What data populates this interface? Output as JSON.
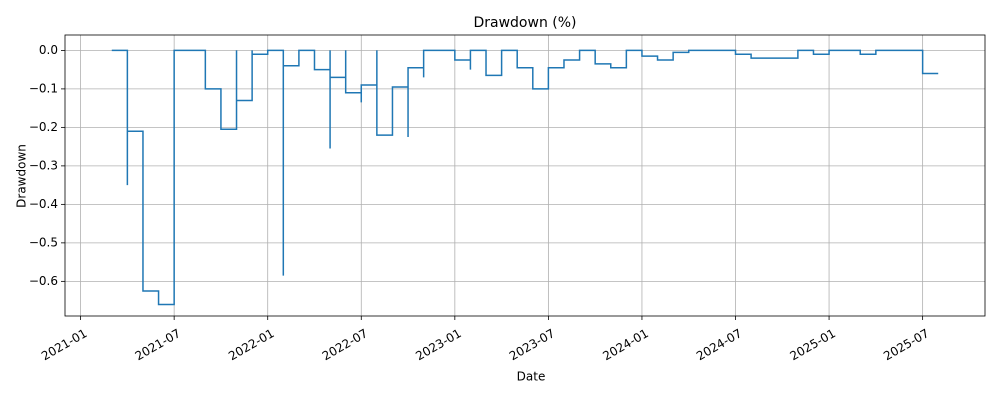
{
  "chart_data": {
    "type": "line",
    "title": "Drawdown (%)",
    "x_label": "Date",
    "y_label": "Drawdown",
    "x": [
      "2021-03",
      "2021-04",
      "2021-04",
      "2021-04",
      "2021-04",
      "2021-04",
      "2021-04",
      "2021-04",
      "2021-05",
      "2021-05",
      "2021-06",
      "2021-06",
      "2021-07",
      "2021-07",
      "2021-07",
      "2021-07",
      "2021-09",
      "2021-09",
      "2021-10",
      "2021-10",
      "2021-11",
      "2021-11",
      "2021-11",
      "2021-12",
      "2021-12",
      "2021-12",
      "2022-01",
      "2022-01",
      "2022-02",
      "2022-02",
      "2022-02",
      "2022-02",
      "2022-03",
      "2022-03",
      "2022-04",
      "2022-04",
      "2022-05",
      "2022-05",
      "2022-05",
      "2022-05",
      "2022-05",
      "2022-06",
      "2022-06",
      "2022-06",
      "2022-07",
      "2022-07",
      "2022-07",
      "2022-08",
      "2022-08",
      "2022-08",
      "2022-08",
      "2022-09",
      "2022-09",
      "2022-09",
      "2022-09",
      "2022-10",
      "2022-10",
      "2022-10",
      "2022-11",
      "2022-11",
      "2022-11",
      "2023-01",
      "2023-01",
      "2023-02",
      "2023-02",
      "2023-02",
      "2023-03",
      "2023-03",
      "2023-03",
      "2023-04",
      "2023-04",
      "2023-05",
      "2023-05",
      "2023-06",
      "2023-06",
      "2023-07",
      "2023-07",
      "2023-08",
      "2023-08",
      "2023-09",
      "2023-09",
      "2023-10",
      "2023-10",
      "2023-11",
      "2023-11",
      "2023-12",
      "2023-12",
      "2024-01",
      "2024-01",
      "2024-02",
      "2024-02",
      "2024-03",
      "2024-03",
      "2024-04",
      "2024-04",
      "2024-07",
      "2024-07",
      "2024-08",
      "2024-08",
      "2024-11",
      "2024-11",
      "2024-12",
      "2024-12",
      "2025-01",
      "2025-01",
      "2025-03",
      "2025-03",
      "2025-04",
      "2025-04",
      "2025-07",
      "2025-07",
      "2025-07",
      "2025-08"
    ],
    "values": [
      0,
      0,
      -0.04,
      0,
      -0.33,
      -0.35,
      -0.06,
      -0.21,
      -0.21,
      -0.625,
      -0.625,
      -0.66,
      -0.66,
      0,
      -0.205,
      0,
      0,
      -0.1,
      -0.1,
      -0.205,
      -0.205,
      0,
      -0.13,
      -0.13,
      0,
      -0.01,
      -0.01,
      0,
      0,
      -0.045,
      -0.585,
      -0.04,
      -0.04,
      0,
      0,
      -0.05,
      -0.05,
      -0.255,
      -0.01,
      0,
      -0.07,
      -0.07,
      0,
      -0.11,
      -0.11,
      -0.135,
      -0.09,
      -0.09,
      -0.03,
      0,
      -0.22,
      -0.22,
      -0.105,
      -0.15,
      -0.095,
      -0.095,
      -0.225,
      -0.045,
      -0.045,
      -0.07,
      0,
      0,
      -0.025,
      -0.025,
      -0.05,
      0,
      0,
      -0.025,
      -0.065,
      -0.065,
      0,
      0,
      -0.045,
      -0.045,
      -0.1,
      -0.1,
      -0.045,
      -0.045,
      -0.025,
      -0.025,
      0,
      0,
      -0.035,
      -0.035,
      -0.045,
      -0.045,
      0,
      0,
      -0.015,
      -0.015,
      -0.025,
      -0.025,
      -0.005,
      -0.005,
      0,
      0,
      -0.01,
      -0.01,
      -0.02,
      -0.02,
      0,
      0,
      -0.01,
      -0.01,
      0,
      0,
      -0.01,
      -0.01,
      0,
      0,
      -0.055,
      -0.06,
      -0.06
    ],
    "color": "#1f77b4",
    "xlim": [
      "2020-12",
      "2025-11"
    ],
    "xticks": [
      "2021-01",
      "2021-07",
      "2022-01",
      "2022-07",
      "2023-01",
      "2023-07",
      "2024-01",
      "2024-07",
      "2025-01",
      "2025-07"
    ],
    "ylim": [
      -0.69,
      0.04
    ],
    "yticks": [
      {
        "value": 0,
        "label": "0.0"
      },
      {
        "value": -0.1,
        "label": "−0.1"
      },
      {
        "value": -0.2,
        "label": "−0.2"
      },
      {
        "value": -0.3,
        "label": "−0.3"
      },
      {
        "value": -0.4,
        "label": "−0.4"
      },
      {
        "value": -0.5,
        "label": "−0.5"
      },
      {
        "value": -0.6,
        "label": "−0.6"
      }
    ],
    "grid": true
  }
}
